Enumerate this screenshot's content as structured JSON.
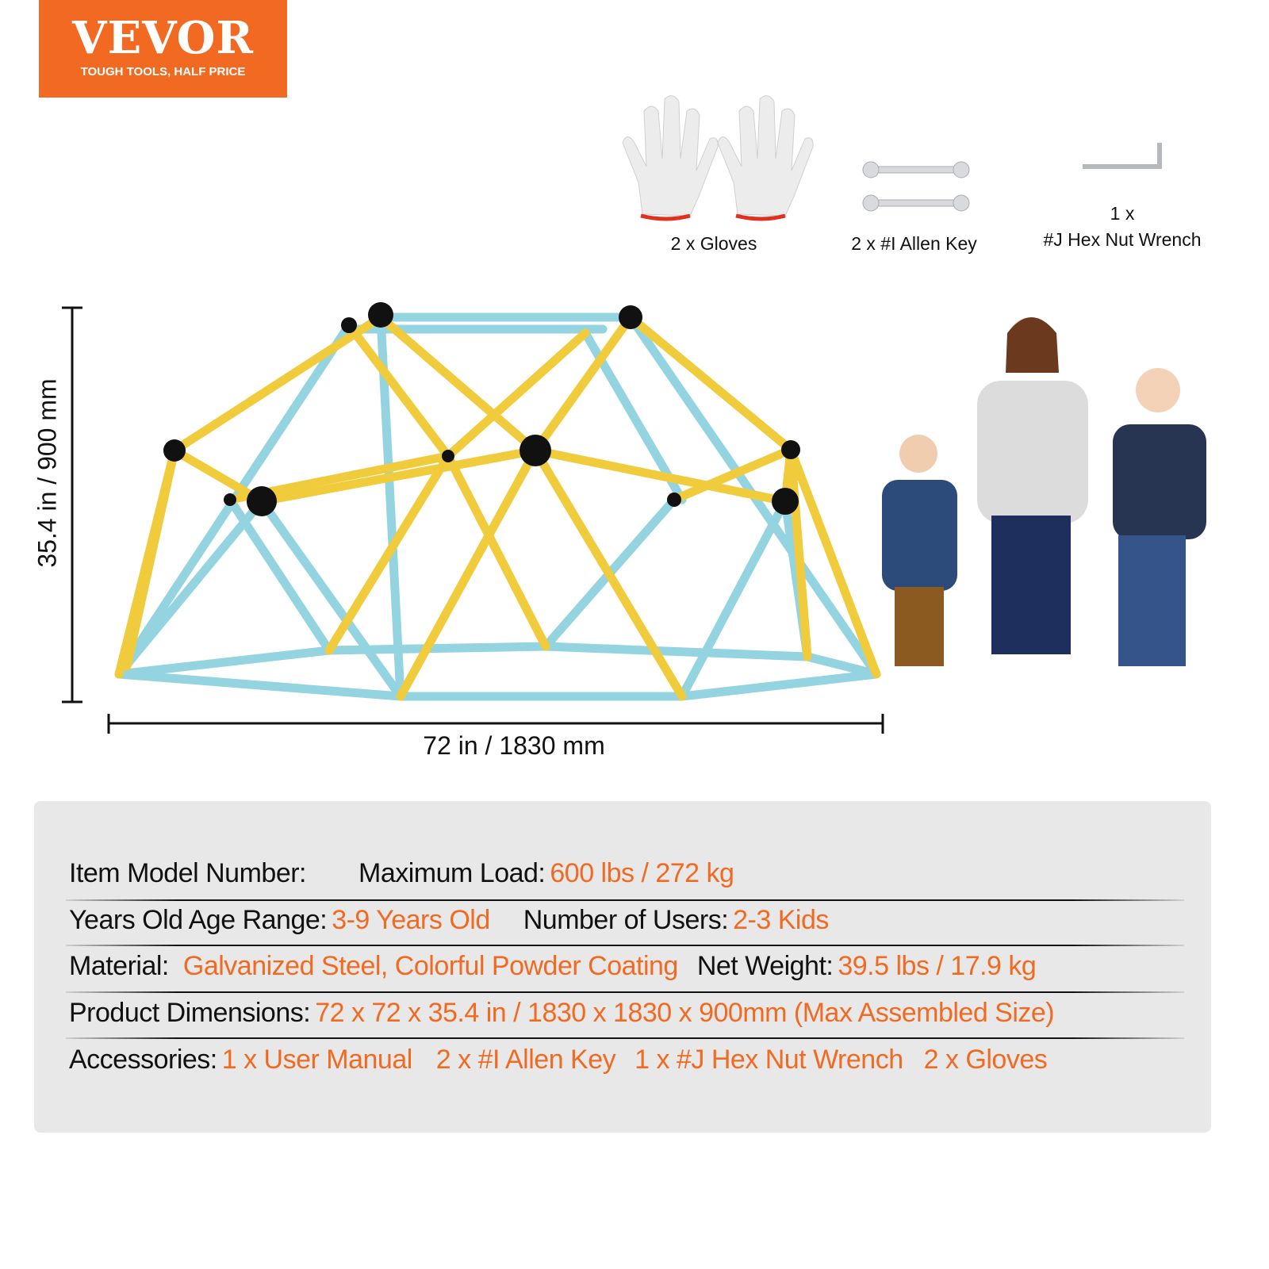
{
  "logo": {
    "brand": "VEVOR",
    "tagline": "TOUGH TOOLS, HALF PRICE",
    "color": "#f26a21"
  },
  "accessories_images": [
    {
      "icon": "gloves-icon",
      "label": "2 x Gloves"
    },
    {
      "icon": "wrench-icon",
      "label": "2 x #I Allen Key"
    },
    {
      "icon": "allen-key-icon",
      "label_line1": "1 x",
      "label_line2": "#J Hex Nut Wrench"
    }
  ],
  "dimensions": {
    "height": "35.4 in / 900 mm",
    "width": "72 in / 1830 mm"
  },
  "colors": {
    "accent": "#f26a21",
    "yellow_bar": "#f0cc3c",
    "blue_bar": "#93d4e0"
  },
  "specs": {
    "row1": {
      "model_label": "Item Model Number:",
      "load_label": "Maximum Load:",
      "load_value": "600 lbs / 272 kg"
    },
    "row2": {
      "age_label": "Years Old Age Range:",
      "age_value": "3-9 Years Old",
      "users_label": "Number of Users:",
      "users_value": "2-3 Kids"
    },
    "row3": {
      "material_label": "Material:",
      "material_value": "Galvanized Steel, Colorful Powder Coating",
      "weight_label": "Net Weight:",
      "weight_value": "39.5 lbs  / 17.9 kg"
    },
    "row4": {
      "dims_label": "Product Dimensions:",
      "dims_value": "72 x 72 x 35.4 in / 1830  x 1830 x 900mm (Max Assembled Size)"
    },
    "row5": {
      "acc_label": "Accessories:",
      "items": [
        "1 x User Manual",
        "2 x #I  Allen Key",
        "1 x #J Hex Nut Wrench",
        "2 x Gloves"
      ]
    }
  }
}
